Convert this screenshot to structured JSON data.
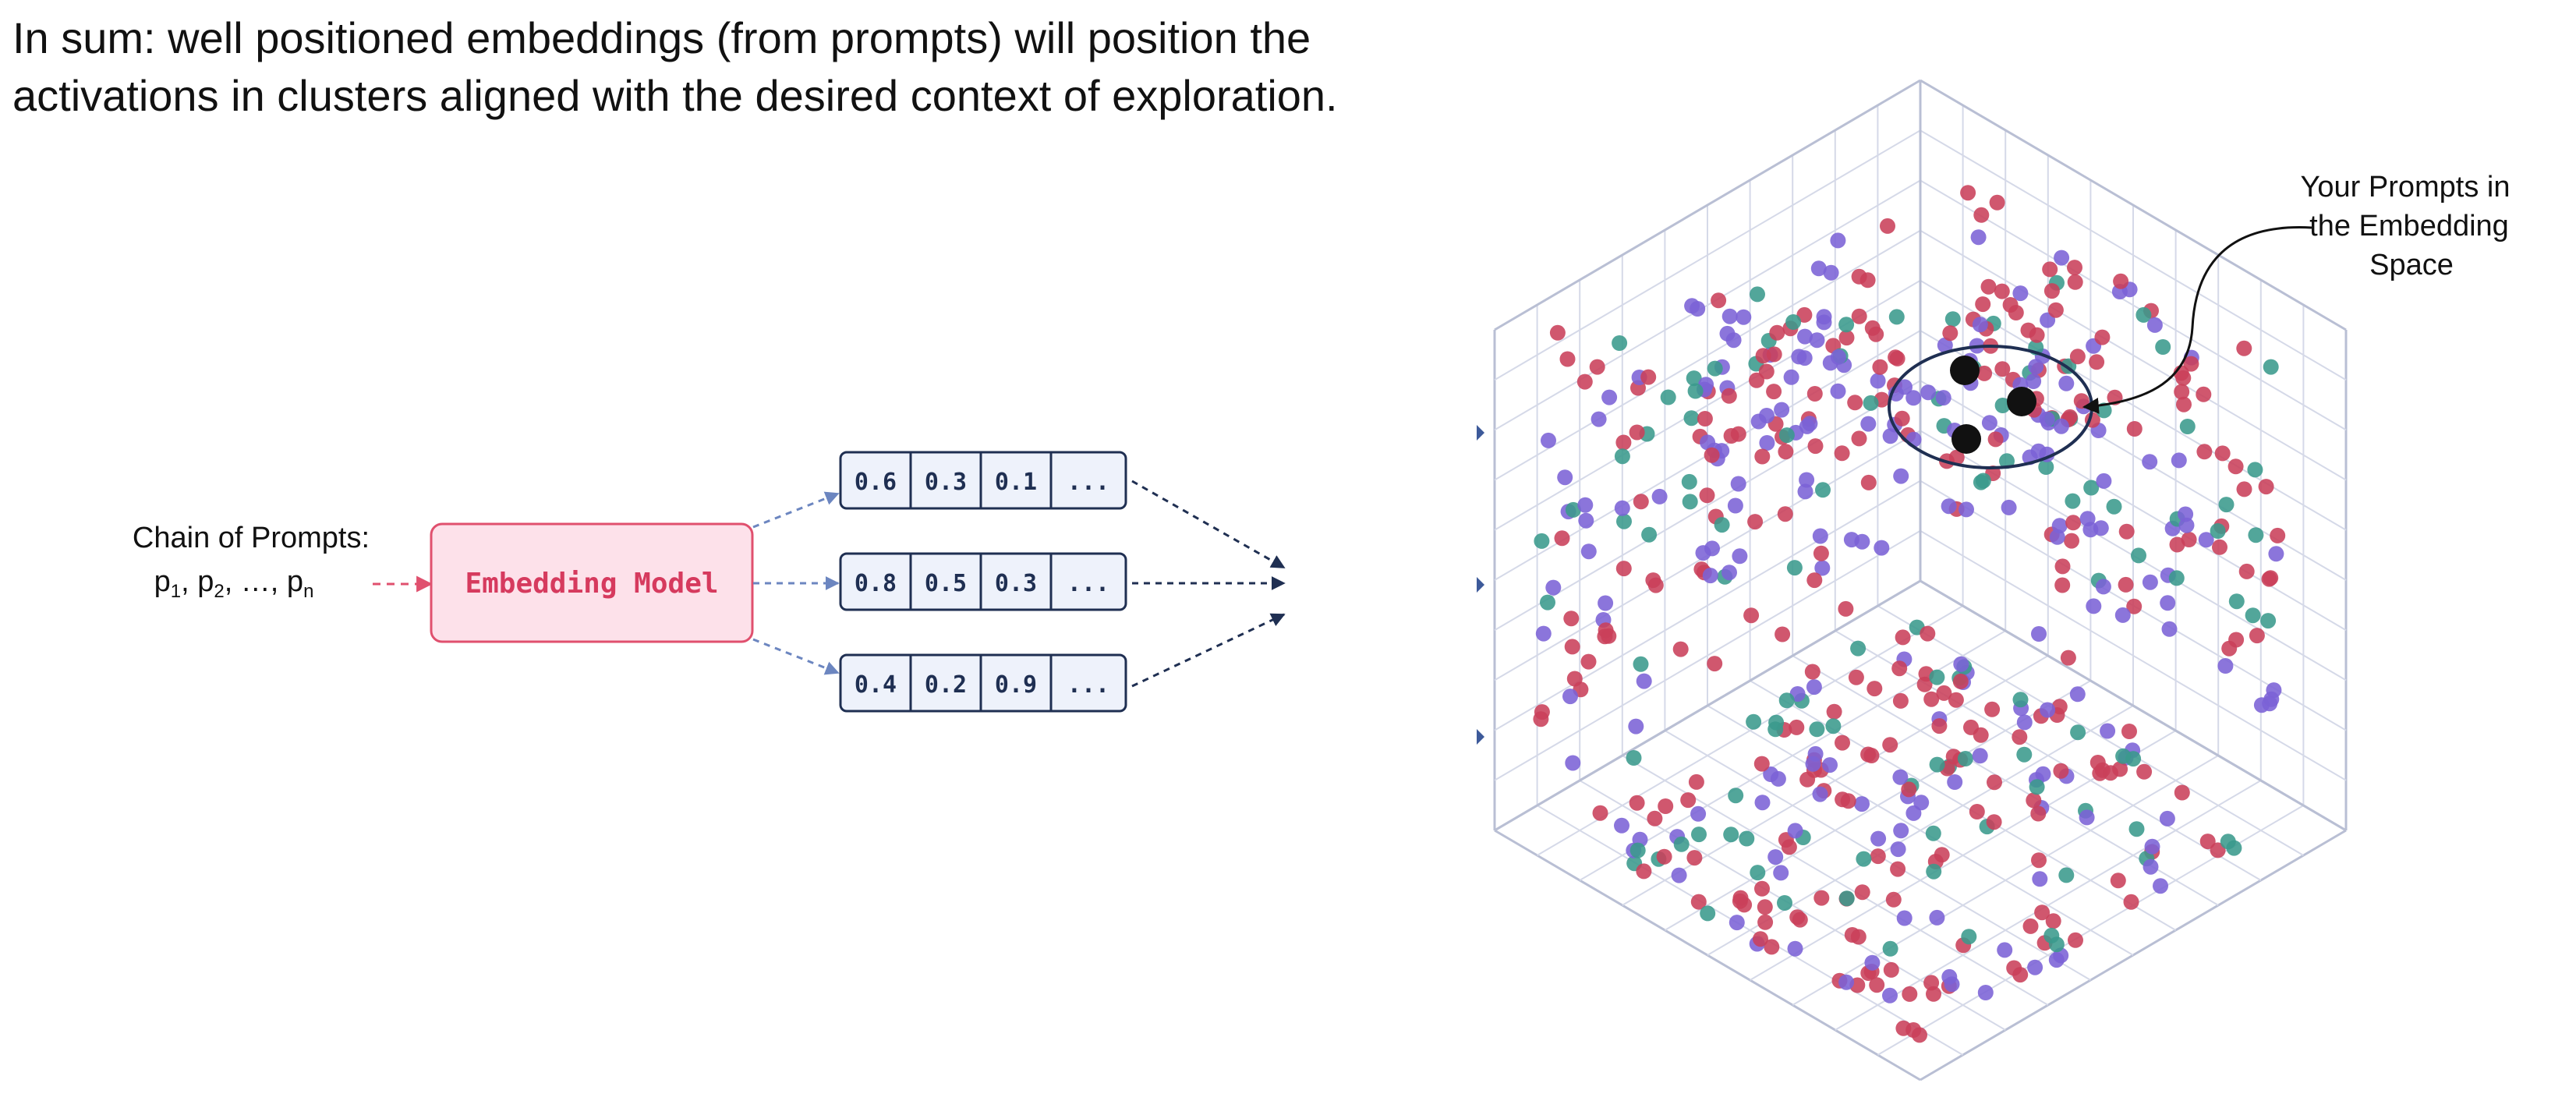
{
  "headline": {
    "line1": "In sum: well positioned embeddings (from prompts) will position the",
    "line2": "activations in clusters aligned with the desired context of exploration."
  },
  "input": {
    "label": "Chain of Prompts:",
    "p1": "p",
    "sub1": "1",
    "p2": ", p",
    "sub2": "2",
    "mid": ", …, p",
    "subn": "n"
  },
  "model": {
    "label": "Embedding Model"
  },
  "vectors": [
    [
      "0.6",
      "0.3",
      "0.1",
      "..."
    ],
    [
      "0.8",
      "0.5",
      "0.3",
      "..."
    ],
    [
      "0.4",
      "0.2",
      "0.9",
      "..."
    ]
  ],
  "annotation": {
    "line1": "Your Prompts in",
    "line2": "the Embedding",
    "line3": "Space"
  },
  "colors": {
    "red": "#c9405a",
    "purple": "#7b62d6",
    "teal": "#3a9a8c",
    "model_fill": "#fde1ea",
    "model_stroke": "#e0506e",
    "model_text": "#d63a5e",
    "navy": "#1f2f52",
    "cell_fill": "#eef2fb",
    "grid": "#d5d9e8"
  }
}
